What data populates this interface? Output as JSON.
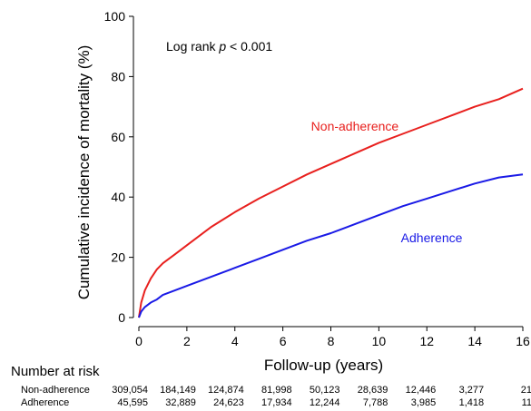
{
  "chart_data": {
    "type": "line",
    "title": "",
    "annotation": {
      "prefix": "Log rank ",
      "italic": "p",
      "suffix": " < 0.001"
    },
    "xlabel": "Follow-up (years)",
    "ylabel": "Cumulative incidence of mortality (%)",
    "xlim": [
      0,
      16
    ],
    "ylim": [
      0,
      100
    ],
    "x_ticks": [
      0,
      2,
      4,
      6,
      8,
      10,
      12,
      14,
      16
    ],
    "y_ticks": [
      0,
      20,
      40,
      60,
      80,
      100
    ],
    "grid": false,
    "legend": "none (series labelled directly on chart)",
    "series": [
      {
        "name": "Non-adherence",
        "color": "#e8201e",
        "x": [
          0,
          0.1,
          0.25,
          0.5,
          0.75,
          1,
          1.5,
          2,
          3,
          4,
          5,
          6,
          7,
          8,
          9,
          10,
          11,
          12,
          13,
          14,
          15,
          16
        ],
        "y": [
          0,
          5,
          9,
          13,
          16,
          18,
          21,
          24,
          30,
          35,
          39.5,
          43.5,
          47.5,
          51,
          54.5,
          58,
          61,
          64,
          67,
          70,
          72.5,
          76
        ]
      },
      {
        "name": "Adherence",
        "color": "#1a1ae6",
        "x": [
          0,
          0.1,
          0.25,
          0.5,
          0.75,
          1,
          1.5,
          2,
          3,
          4,
          5,
          6,
          7,
          8,
          9,
          10,
          11,
          12,
          13,
          14,
          15,
          16
        ],
        "y": [
          0,
          2,
          3.5,
          5,
          6,
          7.5,
          9,
          10.5,
          13.5,
          16.5,
          19.5,
          22.5,
          25.5,
          28,
          31,
          34,
          37,
          39.5,
          42,
          44.5,
          46.5,
          47.5
        ]
      }
    ],
    "series_labels": [
      {
        "text": "Non-adherence",
        "x": 9,
        "y": 62,
        "color": "#e8201e"
      },
      {
        "text": "Adherence",
        "x": 12.2,
        "y": 25,
        "color": "#1a1ae6"
      }
    ],
    "risk_table": {
      "title": "Number at risk",
      "times": [
        0,
        2,
        4,
        6,
        8,
        10,
        12,
        14,
        16
      ],
      "rows": [
        {
          "label": "Non-adherence",
          "values": [
            "309,054",
            "184,149",
            "124,874",
            "81,998",
            "50,123",
            "28,639",
            "12,446",
            "3,277",
            "21"
          ]
        },
        {
          "label": "Adherence",
          "values": [
            "45,595",
            "32,889",
            "24,623",
            "17,934",
            "12,244",
            "7,788",
            "3,985",
            "1,418",
            "11"
          ]
        }
      ]
    }
  }
}
